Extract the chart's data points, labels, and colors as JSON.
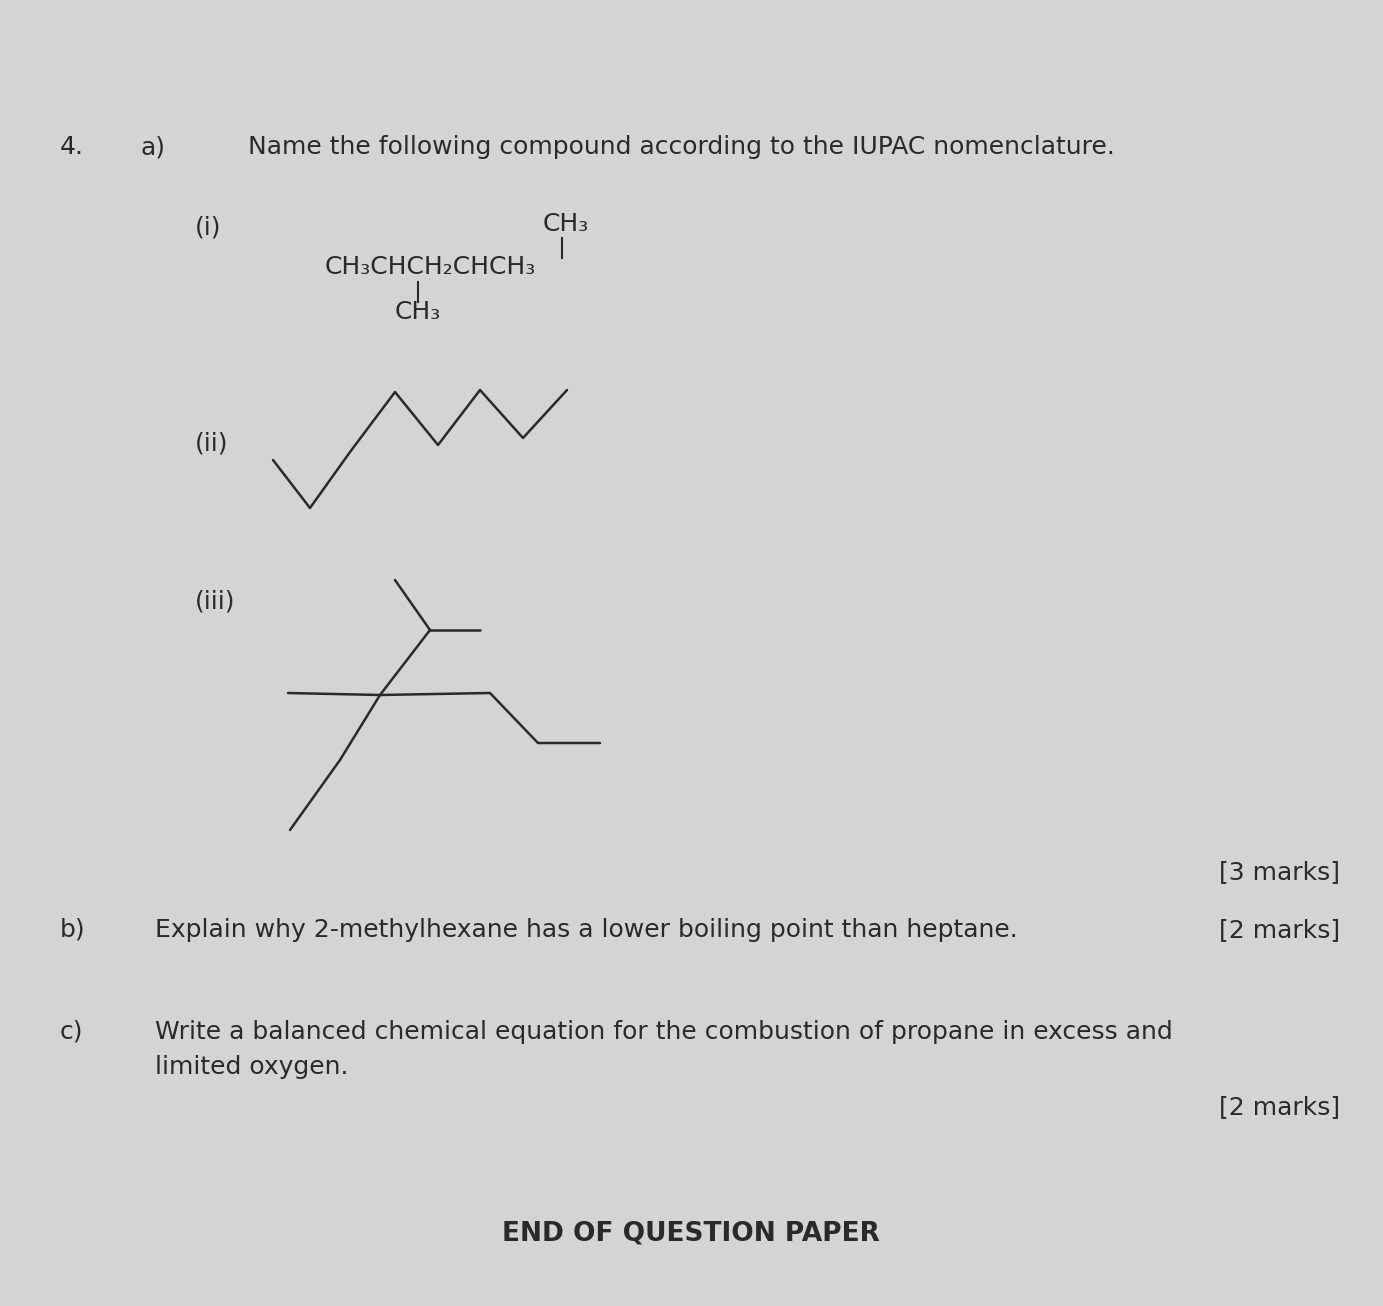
{
  "bg_color": "#d4d4d4",
  "text_color": "#2a2a2a",
  "question_num": "4.",
  "part_a_label": "a)",
  "part_a_text": "Name the following compound according to the IUPAC nomenclature.",
  "part_i_label": "(i)",
  "part_ii_label": "(ii)",
  "part_iii_label": "(iii)",
  "marks_3": "[3 marks]",
  "part_b_label": "b)",
  "part_b_text": "Explain why 2-methylhexane has a lower boiling point than heptane.",
  "marks_2a": "[2 marks]",
  "part_c_label": "c)",
  "part_c_text1": "Write a balanced chemical equation for the combustion of propane in excess and",
  "part_c_text2": "limited oxygen.",
  "marks_2b": "[2 marks]",
  "end_text": "END OF QUESTION PAPER",
  "chain_text": "CH₃CHCH₂CHCH₃",
  "top_ch3": "CH₃",
  "bot_ch3": "CH₃"
}
